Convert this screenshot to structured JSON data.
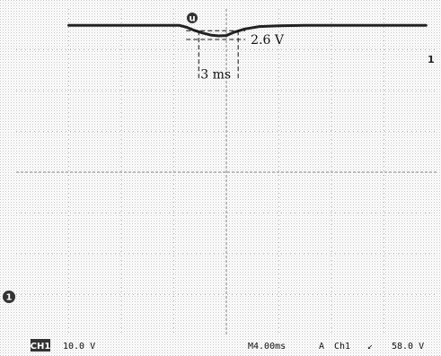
{
  "chart_data": {
    "type": "line",
    "title": "",
    "xlabel": "",
    "ylabel": "",
    "grid": true,
    "x_unit": "ms",
    "y_unit": "V",
    "timebase_ms_per_div": 4.0,
    "ch1_volts_per_div": 10.0,
    "xlim_ms": [
      -16.0,
      16.0
    ],
    "ylim_v": [
      -48.5,
      31.5
    ],
    "series": [
      {
        "x": [
          -12.0,
          -6.5,
          -3.6,
          -3.0,
          -2.4,
          -1.8,
          -1.2,
          -0.6,
          0.0,
          0.6,
          1.4,
          2.5,
          4.0,
          6.0,
          10.0,
          15.2
        ],
        "y": [
          27.5,
          27.5,
          27.5,
          27.0,
          26.2,
          25.6,
          25.1,
          24.9,
          25.0,
          25.8,
          26.6,
          27.2,
          27.4,
          27.5,
          27.5,
          27.5
        ]
      }
    ],
    "annotations": [
      {
        "id": "amplitude",
        "text": "2.6 V"
      },
      {
        "id": "duration",
        "text": "3 ms"
      }
    ]
  },
  "markers": {
    "trigger_top": "u",
    "ground_left": "1",
    "channel_right": "1"
  },
  "status_bar": {
    "channel_label": "CH1",
    "scale": "10.0 V",
    "timebase": "M4.00ms",
    "trigger_mode": "A",
    "trigger_source": "Ch1",
    "slope": "↙",
    "trigger_level": "58.0 V"
  },
  "colors": {
    "trace": "#222222",
    "grid": "#9a9a9a",
    "background": "#ffffff"
  }
}
